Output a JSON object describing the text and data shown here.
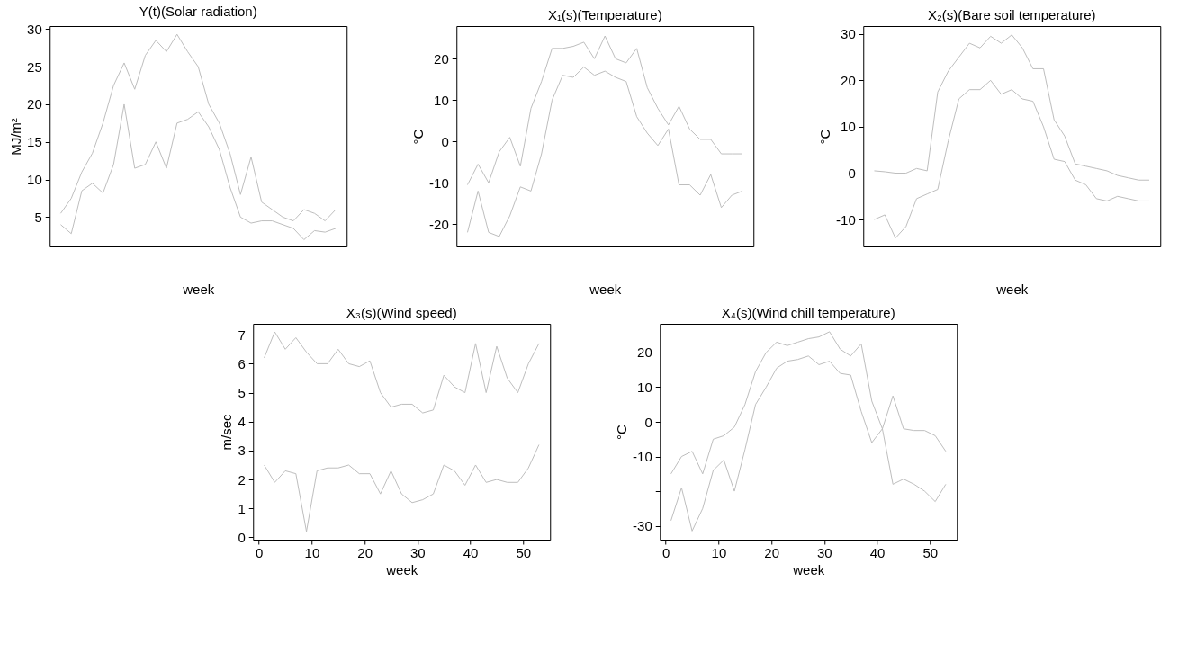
{
  "chart_data": [
    {
      "type": "line",
      "title": "Y(t)(Solar radiation)",
      "xlabel": "week",
      "ylabel": "MJ/m²",
      "tick_labels": "y",
      "ylim": [
        1.1,
        30.4
      ],
      "yticks": [
        5,
        10,
        15,
        20,
        25,
        30
      ],
      "categories": [
        null,
        null,
        null,
        null,
        null,
        null,
        null,
        null,
        null,
        null,
        null,
        null,
        null,
        null,
        null,
        null,
        null,
        null,
        null,
        null,
        null,
        null,
        null,
        null,
        null,
        null,
        null
      ],
      "series": [
        {
          "color": "#bebebe",
          "values": [
            5.5,
            7.5,
            11,
            13.5,
            17.5,
            22.5,
            25.5,
            22,
            26.5,
            28.5,
            27,
            29.3,
            27,
            25,
            20,
            17.5,
            13.5,
            8,
            13,
            7,
            6,
            5,
            4.5,
            6,
            5.5,
            4.5,
            6
          ]
        },
        {
          "color": "#bebebe",
          "values": [
            4,
            2.8,
            8.5,
            9.5,
            8.2,
            12,
            20,
            11.5,
            12,
            15,
            11.5,
            17.5,
            18,
            19,
            17,
            14,
            9,
            5,
            4.2,
            4.5,
            4.5,
            4,
            3.5,
            2,
            3.2,
            3,
            3.5
          ]
        }
      ]
    },
    {
      "type": "line",
      "title": "X₁(s)(Temperature)",
      "xlabel": "week",
      "ylabel": "°C",
      "tick_labels": "y",
      "ylim": [
        -25.4,
        27.9
      ],
      "yticks": [
        -20,
        -10,
        0,
        10,
        20
      ],
      "categories": [
        null,
        null,
        null,
        null,
        null,
        null,
        null,
        null,
        null,
        null,
        null,
        null,
        null,
        null,
        null,
        null,
        null,
        null,
        null,
        null,
        null,
        null,
        null,
        null,
        null,
        null,
        null
      ],
      "series": [
        {
          "color": "#bebebe",
          "values": [
            -10.5,
            -5.5,
            -10,
            -2.5,
            1,
            -6,
            8,
            14.5,
            22.5,
            22.5,
            23,
            24,
            20,
            25.5,
            20,
            19,
            22.5,
            13,
            8,
            4,
            8.5,
            3,
            0.5,
            0.5,
            -3,
            -3,
            -3
          ]
        },
        {
          "color": "#bebebe",
          "values": [
            -22,
            -12,
            -22,
            -23,
            -18,
            -11,
            -12,
            -3,
            10,
            16,
            15.5,
            18,
            16,
            17,
            15.5,
            14.5,
            6,
            2,
            -1,
            3,
            -10.5,
            -10.5,
            -13,
            -8,
            -16,
            -13,
            -12
          ]
        }
      ]
    },
    {
      "type": "line",
      "title": "X₂(s)(Bare soil temperature)",
      "xlabel": "week",
      "ylabel": "°C",
      "tick_labels": "y",
      "ylim": [
        -15.8,
        31.7
      ],
      "yticks": [
        -10,
        0,
        10,
        20,
        30
      ],
      "categories": [
        null,
        null,
        null,
        null,
        null,
        null,
        null,
        null,
        null,
        null,
        null,
        null,
        null,
        null,
        null,
        null,
        null,
        null,
        null,
        null,
        null,
        null,
        null,
        null,
        null,
        null,
        null
      ],
      "series": [
        {
          "color": "#bebebe",
          "values": [
            0.5,
            0.3,
            0,
            0,
            1,
            0.5,
            17.5,
            22,
            25,
            28,
            27,
            29.5,
            28,
            29.8,
            27,
            22.5,
            22.5,
            11.5,
            8,
            2,
            1.5,
            1,
            0.5,
            -0.5,
            -1,
            -1.5,
            -1.5
          ]
        },
        {
          "color": "#bebebe",
          "values": [
            -10,
            -9,
            -14,
            -11.5,
            -5.5,
            -4.5,
            -3.5,
            7,
            16,
            18,
            18,
            20,
            17,
            18,
            16,
            15.5,
            10,
            3,
            2.5,
            -1.5,
            -2.5,
            -5.5,
            -6,
            -5,
            -5.5,
            -6,
            -6
          ]
        }
      ]
    },
    {
      "type": "line",
      "title": "X₃(s)(Wind speed)",
      "xlabel": "week",
      "ylabel": "m/sec",
      "xlim": [
        -1.1,
        55.1
      ],
      "xticks": [
        0,
        10,
        20,
        30,
        40,
        50
      ],
      "ylim": [
        -0.08,
        7.38
      ],
      "yticks": [
        0,
        1,
        2,
        3,
        4,
        5,
        6,
        7
      ],
      "x": [
        1,
        3,
        5,
        7,
        9,
        11,
        13,
        15,
        17,
        19,
        21,
        23,
        25,
        27,
        29,
        31,
        33,
        35,
        37,
        39,
        41,
        43,
        45,
        47,
        49,
        51,
        53
      ],
      "series": [
        {
          "color": "#bebebe",
          "values": [
            6.2,
            7.1,
            6.5,
            6.9,
            6.4,
            6,
            6,
            6.5,
            6,
            5.9,
            6.1,
            5,
            4.5,
            4.6,
            4.6,
            4.3,
            4.4,
            5.6,
            5.2,
            5,
            6.7,
            5,
            6.6,
            5.5,
            5,
            6,
            6.7
          ]
        },
        {
          "color": "#bebebe",
          "values": [
            2.5,
            1.9,
            2.3,
            2.2,
            0.2,
            2.3,
            2.4,
            2.4,
            2.5,
            2.2,
            2.2,
            1.5,
            2.3,
            1.5,
            1.2,
            1.3,
            1.5,
            2.5,
            2.3,
            1.8,
            2.5,
            1.9,
            2,
            1.9,
            1.9,
            2.4,
            3.2
          ]
        }
      ]
    },
    {
      "type": "line",
      "title": "X₄(s)(Wind chill temperature)",
      "xlabel": "week",
      "ylabel": "°C",
      "xlim": [
        -1.1,
        55.1
      ],
      "xticks": [
        0,
        10,
        20,
        30,
        40,
        50
      ],
      "ylim": [
        -34,
        28.3
      ],
      "yticks": [
        -30,
        {
          "value": -20,
          "label": null
        },
        -10,
        0,
        10,
        20
      ],
      "x": [
        1,
        3,
        5,
        7,
        9,
        11,
        13,
        15,
        17,
        19,
        21,
        23,
        25,
        27,
        29,
        31,
        33,
        35,
        37,
        39,
        41,
        43,
        45,
        47,
        49,
        51,
        53
      ],
      "series": [
        {
          "color": "#bebebe",
          "values": [
            -15,
            -10,
            -8.5,
            -15,
            -5,
            -4,
            -1.5,
            5,
            14.5,
            20,
            23,
            22,
            23,
            24,
            24.5,
            26,
            21,
            19,
            22.5,
            6,
            -2,
            7.5,
            -2,
            -2.5,
            -2.5,
            -4,
            -8.5
          ]
        },
        {
          "color": "#bebebe",
          "values": [
            -28.5,
            -19,
            -31.5,
            -25,
            -14,
            -11,
            -20,
            -8,
            5,
            10,
            15.5,
            17.5,
            18,
            19,
            16.5,
            17.5,
            14,
            13.5,
            3,
            -6,
            -2,
            -18,
            -16.5,
            -18,
            -20,
            -23,
            -18
          ]
        }
      ]
    }
  ]
}
